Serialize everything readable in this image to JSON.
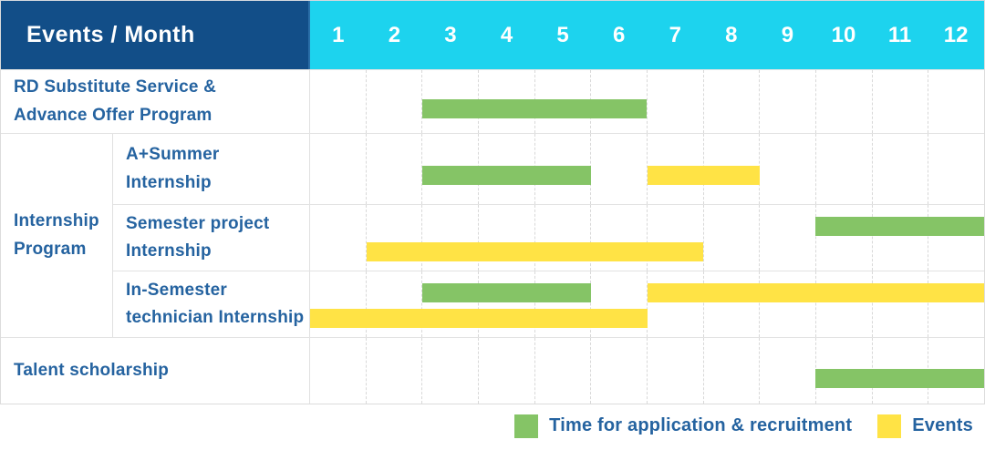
{
  "header": {
    "title": "Events / Month",
    "months": [
      "1",
      "2",
      "3",
      "4",
      "5",
      "6",
      "7",
      "8",
      "9",
      "10",
      "11",
      "12"
    ]
  },
  "colors": {
    "header_bg": "#124e88",
    "months_bg": "#1dd3ee",
    "application_green": "#85c466",
    "events_yellow": "#ffe345",
    "label_text": "#2563a0",
    "grid_line": "#d8d8d8"
  },
  "chart_data": {
    "type": "gantt",
    "title": "Events / Month",
    "x_domain": [
      1,
      12
    ],
    "columns": [
      "1",
      "2",
      "3",
      "4",
      "5",
      "6",
      "7",
      "8",
      "9",
      "10",
      "11",
      "12"
    ],
    "rows": [
      {
        "group": "",
        "label_lines": [
          "RD Substitute Service &",
          "Advance Offer Program"
        ],
        "bars": [
          {
            "series": "application",
            "start_month": 3,
            "end_month": 6,
            "line": 0
          }
        ]
      },
      {
        "group": "Internship Program",
        "label_lines": [
          "A+Summer",
          "Internship"
        ],
        "bars": [
          {
            "series": "application",
            "start_month": 3,
            "end_month": 5,
            "line": 0
          },
          {
            "series": "events",
            "start_month": 7,
            "end_month": 8,
            "line": 0
          }
        ]
      },
      {
        "group": "Internship Program",
        "label_lines": [
          "Semester project",
          "Internship"
        ],
        "bars": [
          {
            "series": "application",
            "start_month": 10,
            "end_month": 12,
            "line": 0
          },
          {
            "series": "events",
            "start_month": 2,
            "end_month": 7,
            "line": 1
          }
        ]
      },
      {
        "group": "Internship Program",
        "label_lines": [
          "In-Semester",
          "technician Internship"
        ],
        "bars": [
          {
            "series": "application",
            "start_month": 3,
            "end_month": 5,
            "line": 0
          },
          {
            "series": "events",
            "start_month": 7,
            "end_month": 12,
            "line": 0
          },
          {
            "series": "events",
            "start_month": 1,
            "end_month": 6,
            "line": 1
          }
        ]
      },
      {
        "group": "",
        "label_lines": [
          "Talent scholarship"
        ],
        "bars": [
          {
            "series": "application",
            "start_month": 10,
            "end_month": 12,
            "line": 0
          }
        ]
      }
    ],
    "legend": [
      {
        "series": "application",
        "label": "Time for application & recruitment",
        "color": "#85c466"
      },
      {
        "series": "events",
        "label": "Events",
        "color": "#ffe345"
      }
    ]
  }
}
